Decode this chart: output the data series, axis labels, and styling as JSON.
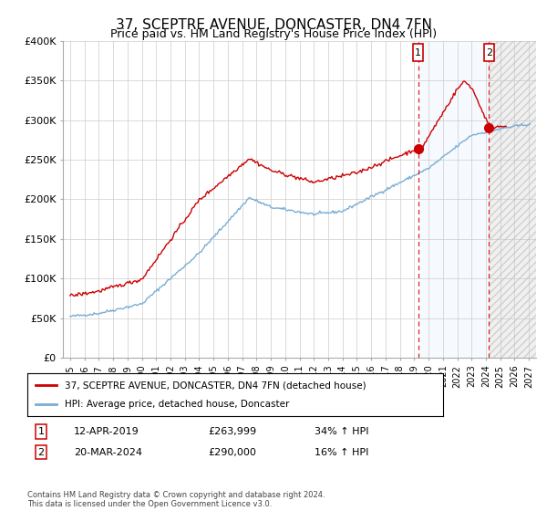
{
  "title": "37, SCEPTRE AVENUE, DONCASTER, DN4 7FN",
  "subtitle": "Price paid vs. HM Land Registry's House Price Index (HPI)",
  "legend_line1": "37, SCEPTRE AVENUE, DONCASTER, DN4 7FN (detached house)",
  "legend_line2": "HPI: Average price, detached house, Doncaster",
  "annotation1_date": "12-APR-2019",
  "annotation1_price": "£263,999",
  "annotation1_hpi": "34% ↑ HPI",
  "annotation2_date": "20-MAR-2024",
  "annotation2_price": "£290,000",
  "annotation2_hpi": "16% ↑ HPI",
  "sale1_year": 2019.28,
  "sale1_price": 263999,
  "sale2_year": 2024.22,
  "sale2_price": 290000,
  "ylim": [
    0,
    400000
  ],
  "xlim_start": 1994.5,
  "xlim_end": 2027.5,
  "shade_start": 2019.28,
  "shade_end": 2024.22,
  "hatch_start": 2024.22,
  "hatch_end": 2027.5,
  "yticks": [
    0,
    50000,
    100000,
    150000,
    200000,
    250000,
    300000,
    350000,
    400000
  ],
  "ytick_labels": [
    "£0",
    "£50K",
    "£100K",
    "£150K",
    "£200K",
    "£250K",
    "£300K",
    "£350K",
    "£400K"
  ],
  "copyright_text": "Contains HM Land Registry data © Crown copyright and database right 2024.\nThis data is licensed under the Open Government Licence v3.0.",
  "red_color": "#cc0000",
  "blue_color": "#7aadd4",
  "bg_color": "#ffffff",
  "grid_color": "#cccccc",
  "shade_color": "#ddeeff",
  "hatch_color": "#bbbbbb"
}
